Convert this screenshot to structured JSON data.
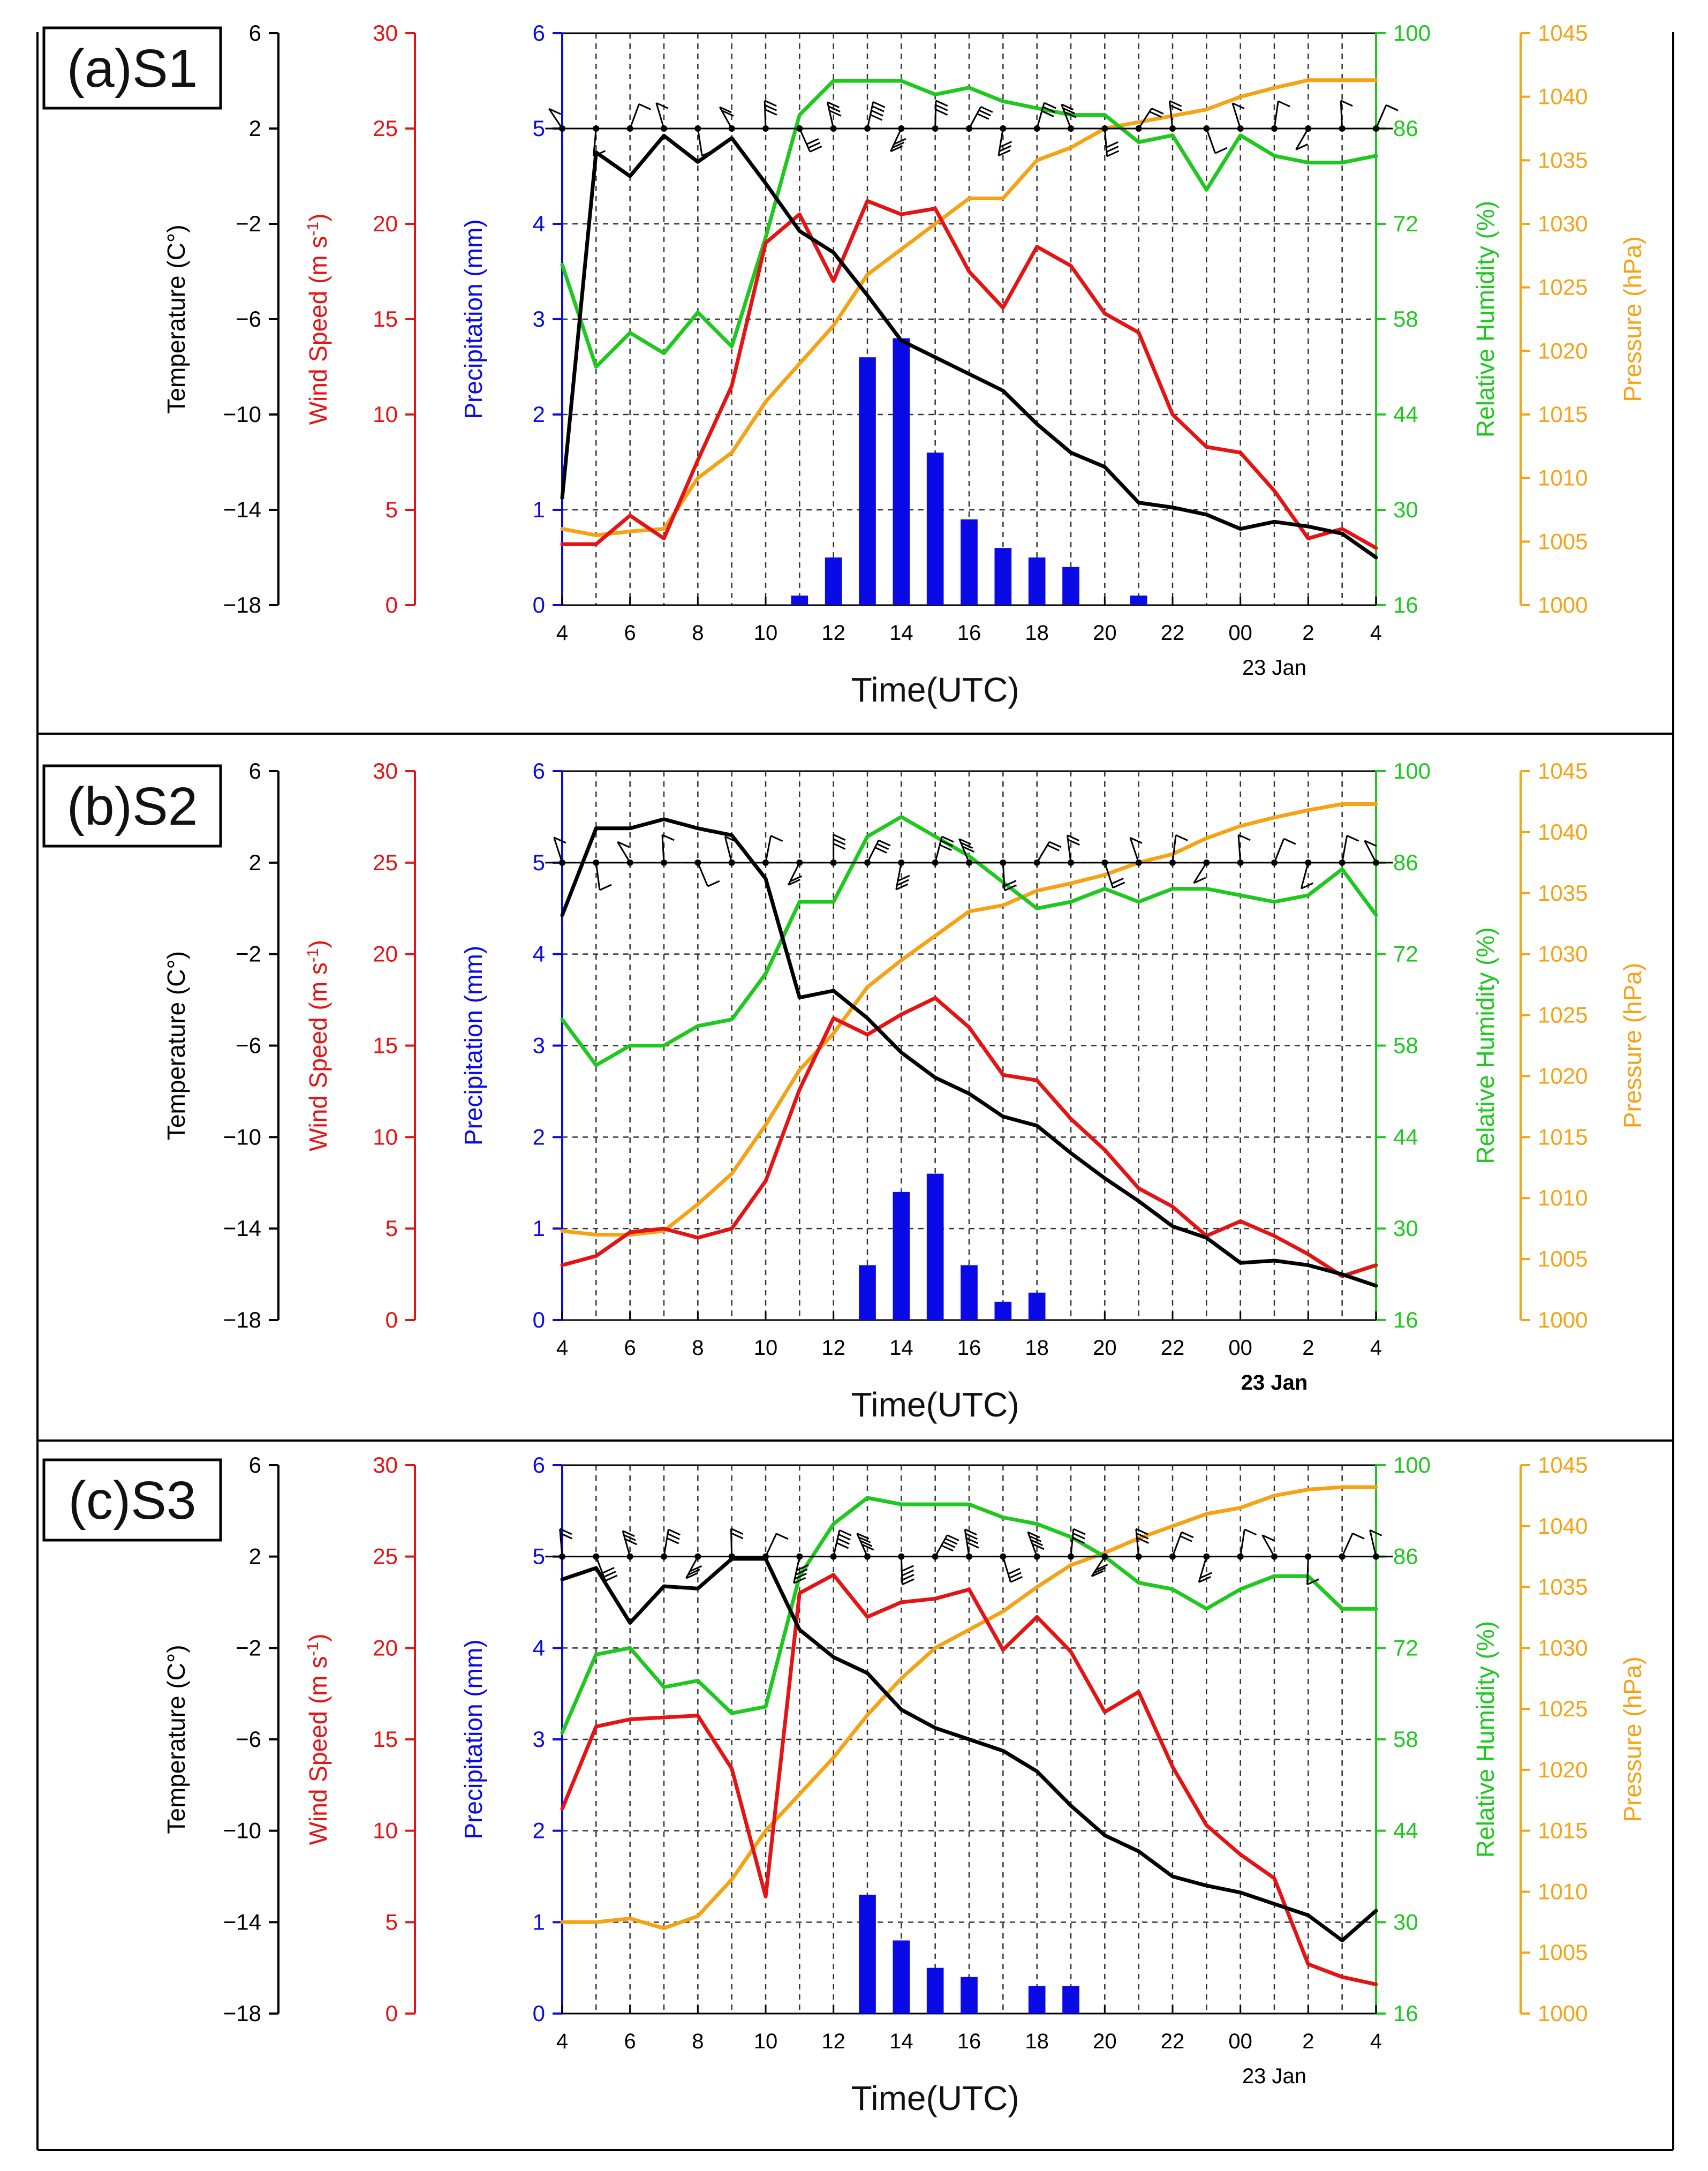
{
  "colors": {
    "temperature": "#000000",
    "wind": "#e41414",
    "precip": "#0a0ae6",
    "rh": "#1ec81e",
    "pressure": "#f5a214"
  },
  "axes": {
    "x_ticks": [
      "4",
      "6",
      "8",
      "10",
      "12",
      "14",
      "16",
      "18",
      "20",
      "22",
      "00",
      "2",
      "4"
    ],
    "x_label": "Time(UTC)",
    "date_label": "23 Jan",
    "temperature": {
      "label": "Temperature (C°)",
      "ticks": [
        "6",
        "2",
        "-2",
        "-6",
        "-10",
        "-14",
        "-18"
      ],
      "range": [
        -18,
        6
      ]
    },
    "wind": {
      "label": "Wind Speed (m s-1)",
      "ticks": [
        "30",
        "25",
        "20",
        "15",
        "10",
        "5",
        "0"
      ],
      "range": [
        0,
        30
      ]
    },
    "precip": {
      "label": "Precipitation (mm)",
      "ticks": [
        "6",
        "5",
        "4",
        "3",
        "2",
        "1",
        "0"
      ],
      "range": [
        0,
        6
      ]
    },
    "rh": {
      "label": "Relative Humidity (%)",
      "ticks": [
        "100",
        "86",
        "72",
        "58",
        "44",
        "30",
        "16"
      ],
      "range": [
        16,
        100
      ]
    },
    "pressure": {
      "label": "Pressure (hPa)",
      "ticks": [
        "1045",
        "1040",
        "1035",
        "1030",
        "1025",
        "1020",
        "1015",
        "1010",
        "1005",
        "1000"
      ],
      "range": [
        1000,
        1045
      ]
    }
  },
  "chart_data": [
    {
      "type": "line",
      "title": "(a)S1",
      "hours": [
        4,
        5,
        6,
        7,
        8,
        9,
        10,
        11,
        12,
        13,
        14,
        15,
        16,
        17,
        18,
        19,
        20,
        21,
        22,
        23,
        24,
        25,
        26,
        27,
        28
      ],
      "series": [
        {
          "name": "Temperature",
          "unit": "C",
          "values": [
            -13.5,
            1,
            0,
            1.7,
            0.6,
            1.6,
            -0.3,
            -2.3,
            -3.2,
            -5,
            -6.9,
            -7.6,
            -8.3,
            -9,
            -10.4,
            -11.6,
            -12.2,
            -13.7,
            -13.9,
            -14.2,
            -14.8,
            -14.5,
            -14.7,
            -15,
            -16
          ]
        },
        {
          "name": "Wind Speed",
          "unit": "m s-1",
          "values": [
            3.2,
            3.2,
            4.7,
            3.5,
            7.6,
            11.5,
            19,
            20.5,
            17,
            21.2,
            20.5,
            20.8,
            17.5,
            15.6,
            18.8,
            17.8,
            15.3,
            14.3,
            10,
            8.3,
            8,
            6,
            3.5,
            4,
            3
          ]
        },
        {
          "name": "Relative Humidity",
          "unit": "%",
          "values": [
            66,
            51,
            56,
            53,
            59,
            54,
            70,
            88,
            93,
            93,
            93,
            91,
            92,
            90,
            89,
            88,
            88,
            84,
            85,
            77,
            85,
            82,
            81,
            81,
            82
          ]
        },
        {
          "name": "Pressure",
          "unit": "hPa",
          "values": [
            1006,
            1005.5,
            1005.8,
            1006,
            1010,
            1012,
            1016,
            1019,
            1022,
            1026,
            1028,
            1030,
            1032,
            1032,
            1035,
            1036,
            1037.5,
            1038,
            1038.5,
            1039,
            1040,
            1040.7,
            1041.3,
            1041.3,
            1041.3
          ]
        },
        {
          "name": "Precipitation",
          "unit": "mm",
          "hours": [
            11,
            12,
            13,
            14,
            15,
            16,
            17,
            18,
            19,
            21
          ],
          "values": [
            0.1,
            0.5,
            2.6,
            2.8,
            1.6,
            0.9,
            0.6,
            0.5,
            0.4,
            0.1
          ]
        }
      ]
    },
    {
      "type": "line",
      "title": "(b)S2",
      "hours": [
        4,
        5,
        6,
        7,
        8,
        9,
        10,
        11,
        12,
        13,
        14,
        15,
        16,
        17,
        18,
        19,
        20,
        21,
        22,
        23,
        24,
        25,
        26,
        27,
        28
      ],
      "series": [
        {
          "name": "Temperature",
          "unit": "C",
          "values": [
            -0.3,
            3.5,
            3.5,
            3.9,
            3.5,
            3.2,
            1.3,
            -3.9,
            -3.6,
            -4.8,
            -6.3,
            -7.4,
            -8.1,
            -9.1,
            -9.5,
            -10.7,
            -11.8,
            -12.8,
            -13.9,
            -14.4,
            -15.5,
            -15.4,
            -15.6,
            -16,
            -16.5
          ]
        },
        {
          "name": "Wind Speed",
          "unit": "m s-1",
          "values": [
            3,
            3.5,
            4.8,
            5,
            4.5,
            5,
            7.6,
            12.6,
            16.5,
            15.6,
            16.7,
            17.6,
            16,
            13.4,
            13.1,
            11,
            9.3,
            7.2,
            6.2,
            4.6,
            5.4,
            4.6,
            3.6,
            2.4,
            3
          ]
        },
        {
          "name": "Relative Humidity",
          "unit": "%",
          "values": [
            62,
            55,
            58,
            58,
            61,
            62,
            69,
            80,
            80,
            90,
            93,
            90,
            87,
            83,
            79,
            80,
            82,
            80,
            82,
            82,
            81,
            80,
            81,
            85,
            78
          ]
        },
        {
          "name": "Pressure",
          "unit": "hPa",
          "values": [
            1007.3,
            1007,
            1007,
            1007.3,
            1009.5,
            1012,
            1016,
            1020.5,
            1023.5,
            1027.3,
            1029.5,
            1031.5,
            1033.5,
            1034,
            1035.2,
            1035.8,
            1036.5,
            1037.5,
            1038.2,
            1039.5,
            1040.5,
            1041.2,
            1041.8,
            1042.3,
            1042.3
          ]
        },
        {
          "name": "Precipitation",
          "unit": "mm",
          "hours": [
            13,
            14,
            15,
            16,
            17,
            18
          ],
          "values": [
            0.6,
            1.4,
            1.6,
            0.6,
            0.2,
            0.3
          ]
        }
      ]
    },
    {
      "type": "line",
      "title": "(c)S3",
      "hours": [
        4,
        5,
        6,
        7,
        8,
        9,
        10,
        11,
        12,
        13,
        14,
        15,
        16,
        17,
        18,
        19,
        20,
        21,
        22,
        23,
        24,
        25,
        26,
        27,
        28
      ],
      "series": [
        {
          "name": "Temperature",
          "unit": "C",
          "values": [
            1,
            1.5,
            -0.9,
            0.7,
            0.6,
            1.9,
            1.9,
            -1.2,
            -2.4,
            -3.1,
            -4.7,
            -5.5,
            -6,
            -6.5,
            -7.4,
            -8.9,
            -10.2,
            -10.9,
            -12,
            -12.4,
            -12.7,
            -13.2,
            -13.7,
            -14.8,
            -13.5
          ]
        },
        {
          "name": "Wind Speed",
          "unit": "m s-1",
          "values": [
            11.2,
            15.7,
            16.1,
            16.2,
            16.3,
            13.4,
            6.4,
            23,
            24,
            21.7,
            22.5,
            22.7,
            23.2,
            19.9,
            21.7,
            19.8,
            16.5,
            17.6,
            13.5,
            10.3,
            8.7,
            7.4,
            2.7,
            2,
            1.6
          ]
        },
        {
          "name": "Relative Humidity",
          "unit": "%",
          "values": [
            59,
            71,
            72,
            66,
            67,
            62,
            63,
            83,
            91,
            95,
            94,
            94,
            94,
            92,
            91,
            89,
            86,
            82,
            81,
            78,
            81,
            83,
            83,
            78,
            78
          ]
        },
        {
          "name": "Pressure",
          "unit": "hPa",
          "values": [
            1007.5,
            1007.5,
            1007.8,
            1007,
            1008,
            1011,
            1015,
            1018,
            1021,
            1024.5,
            1027.5,
            1030,
            1031.5,
            1033,
            1035,
            1036.8,
            1037.8,
            1039,
            1040,
            1041,
            1041.5,
            1042.5,
            1043,
            1043.2,
            1043.2
          ]
        },
        {
          "name": "Precipitation",
          "unit": "mm",
          "hours": [
            13,
            14,
            15,
            16,
            18,
            19
          ],
          "values": [
            1.3,
            0.8,
            0.5,
            0.4,
            0.3,
            0.3
          ]
        }
      ]
    }
  ],
  "wind_barbs_note": "Wind barbs plotted along the 86% RH level"
}
